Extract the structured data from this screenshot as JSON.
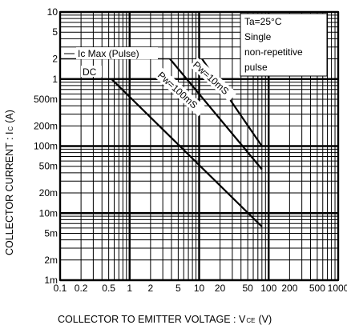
{
  "chart_data": {
    "type": "line",
    "title": "",
    "xlabel": "COLLECTOR TO EMITTER VOLTAGE : V",
    "xlabel_sub": "CE",
    "xlabel_unit": "(V)",
    "ylabel": "COLLECTOR CURRENT : I",
    "ylabel_sub": "C",
    "ylabel_unit": "(A)",
    "x_scale": "log",
    "y_scale": "log",
    "xlim": [
      0.1,
      1000
    ],
    "ylim": [
      0.001,
      10
    ],
    "grid": true,
    "x_ticks": [
      {
        "value": 0.1,
        "label": "0.1"
      },
      {
        "value": 0.2,
        "label": "0.2"
      },
      {
        "value": 0.5,
        "label": "0.5"
      },
      {
        "value": 1,
        "label": "1"
      },
      {
        "value": 2,
        "label": "2"
      },
      {
        "value": 5,
        "label": "5"
      },
      {
        "value": 10,
        "label": "10"
      },
      {
        "value": 20,
        "label": "20"
      },
      {
        "value": 50,
        "label": "50"
      },
      {
        "value": 100,
        "label": "100"
      },
      {
        "value": 200,
        "label": "200"
      },
      {
        "value": 500,
        "label": "500"
      },
      {
        "value": 1000,
        "label": "1000"
      }
    ],
    "y_ticks": [
      {
        "value": 10,
        "label": "10"
      },
      {
        "value": 5,
        "label": "5"
      },
      {
        "value": 2,
        "label": "2"
      },
      {
        "value": 1,
        "label": "1"
      },
      {
        "value": 0.5,
        "label": "500m"
      },
      {
        "value": 0.2,
        "label": "200m"
      },
      {
        "value": 0.1,
        "label": "100m"
      },
      {
        "value": 0.05,
        "label": "50m"
      },
      {
        "value": 0.02,
        "label": "20m"
      },
      {
        "value": 0.01,
        "label": "10m"
      },
      {
        "value": 0.005,
        "label": "5m"
      },
      {
        "value": 0.002,
        "label": "2m"
      },
      {
        "value": 0.001,
        "label": "1m"
      }
    ],
    "series": [
      {
        "name": "Ic Max (Pulse)",
        "x": [
          0.1,
          3.8
        ],
        "y": [
          2,
          2
        ]
      },
      {
        "name": "DC",
        "x": [
          0.55,
          80
        ],
        "y": [
          1,
          0.0063
        ]
      },
      {
        "name": "Pw=100mS",
        "x": [
          3.8,
          80
        ],
        "y": [
          2,
          0.045
        ]
      },
      {
        "name": "Pw=10mS",
        "x": [
          11,
          80
        ],
        "y": [
          2,
          0.1
        ]
      }
    ],
    "annotations": [
      "Ta=25°C",
      "Single",
      "non-repetitive",
      "pulse"
    ]
  }
}
